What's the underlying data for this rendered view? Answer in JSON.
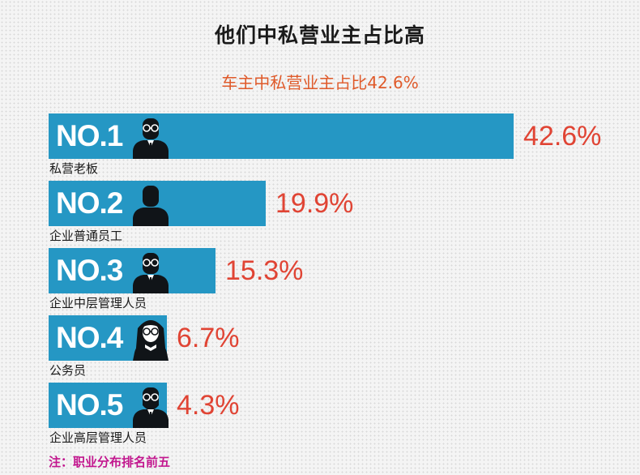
{
  "title": "他们中私营业主占比高",
  "subtitle": "车主中私营业主占比42.6%",
  "note": "注：职业分布排名前五",
  "colors": {
    "bar": "#2597c4",
    "value": "#e04434",
    "subtitle": "#e05a2a",
    "note": "#c2168e"
  },
  "chart_data": {
    "type": "bar",
    "orientation": "horizontal",
    "title": "他们中私营业主占比高",
    "subtitle": "车主中私营业主占比42.6%",
    "unit": "%",
    "categories": [
      "私营老板",
      "企业普通员工",
      "企业中层管理人员",
      "公务员",
      "企业高层管理人员"
    ],
    "values": [
      42.6,
      19.9,
      15.3,
      6.7,
      4.3
    ],
    "value_labels": [
      "42.6%",
      "19.9%",
      "15.3%",
      "6.7%",
      "4.3%"
    ],
    "rank_labels": [
      "NO.1",
      "NO.2",
      "NO.3",
      "NO.4",
      "NO.5"
    ],
    "icons": [
      "man-with-glasses-icon",
      "man-icon",
      "man-with-glasses-icon",
      "woman-with-glasses-icon",
      "bearded-man-icon"
    ]
  }
}
